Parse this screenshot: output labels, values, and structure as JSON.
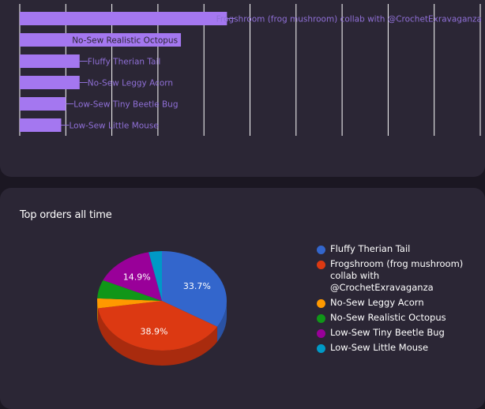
{
  "chart_data": [
    {
      "type": "bar",
      "orientation": "horizontal",
      "categories": [
        "Frogshroom (frog mushroom) collab with @CrochetExravaganza",
        "No-Sew Realistic Octopus",
        "Fluffy Therian Tail",
        "No-Sew Leggy Acorn",
        "Low-Sew Tiny Beetle Bug",
        "Low-Sew Little Mouse"
      ],
      "values": [
        45,
        35,
        13,
        13,
        10,
        9
      ],
      "xlim": [
        0,
        100
      ],
      "grid": true,
      "color": "#a477f0",
      "label_color": "#8f6fd6"
    },
    {
      "type": "pie",
      "title": "Top orders all time",
      "labels": [
        "Fluffy Therian Tail",
        "Frogshroom (frog mushroom) collab with @CrochetExravaganza",
        "No-Sew Leggy Acorn",
        "No-Sew Realistic Octopus",
        "Low-Sew Tiny Beetle Bug",
        "Low-Sew Little Mouse"
      ],
      "values": [
        33.7,
        38.9,
        3.2,
        6.0,
        14.9,
        3.3
      ],
      "value_labels": [
        "33.7%",
        "38.9%",
        "",
        "",
        "14.9%",
        ""
      ],
      "colors": [
        "#3366cc",
        "#dc3912",
        "#ff9900",
        "#109618",
        "#990099",
        "#0099c6"
      ],
      "side_colors": [
        "#2a52a3",
        "#a92b0e",
        "#c97800",
        "#0c6e12",
        "#6e006e",
        "#007599"
      ],
      "legend_position": "right",
      "style": "3d"
    }
  ]
}
